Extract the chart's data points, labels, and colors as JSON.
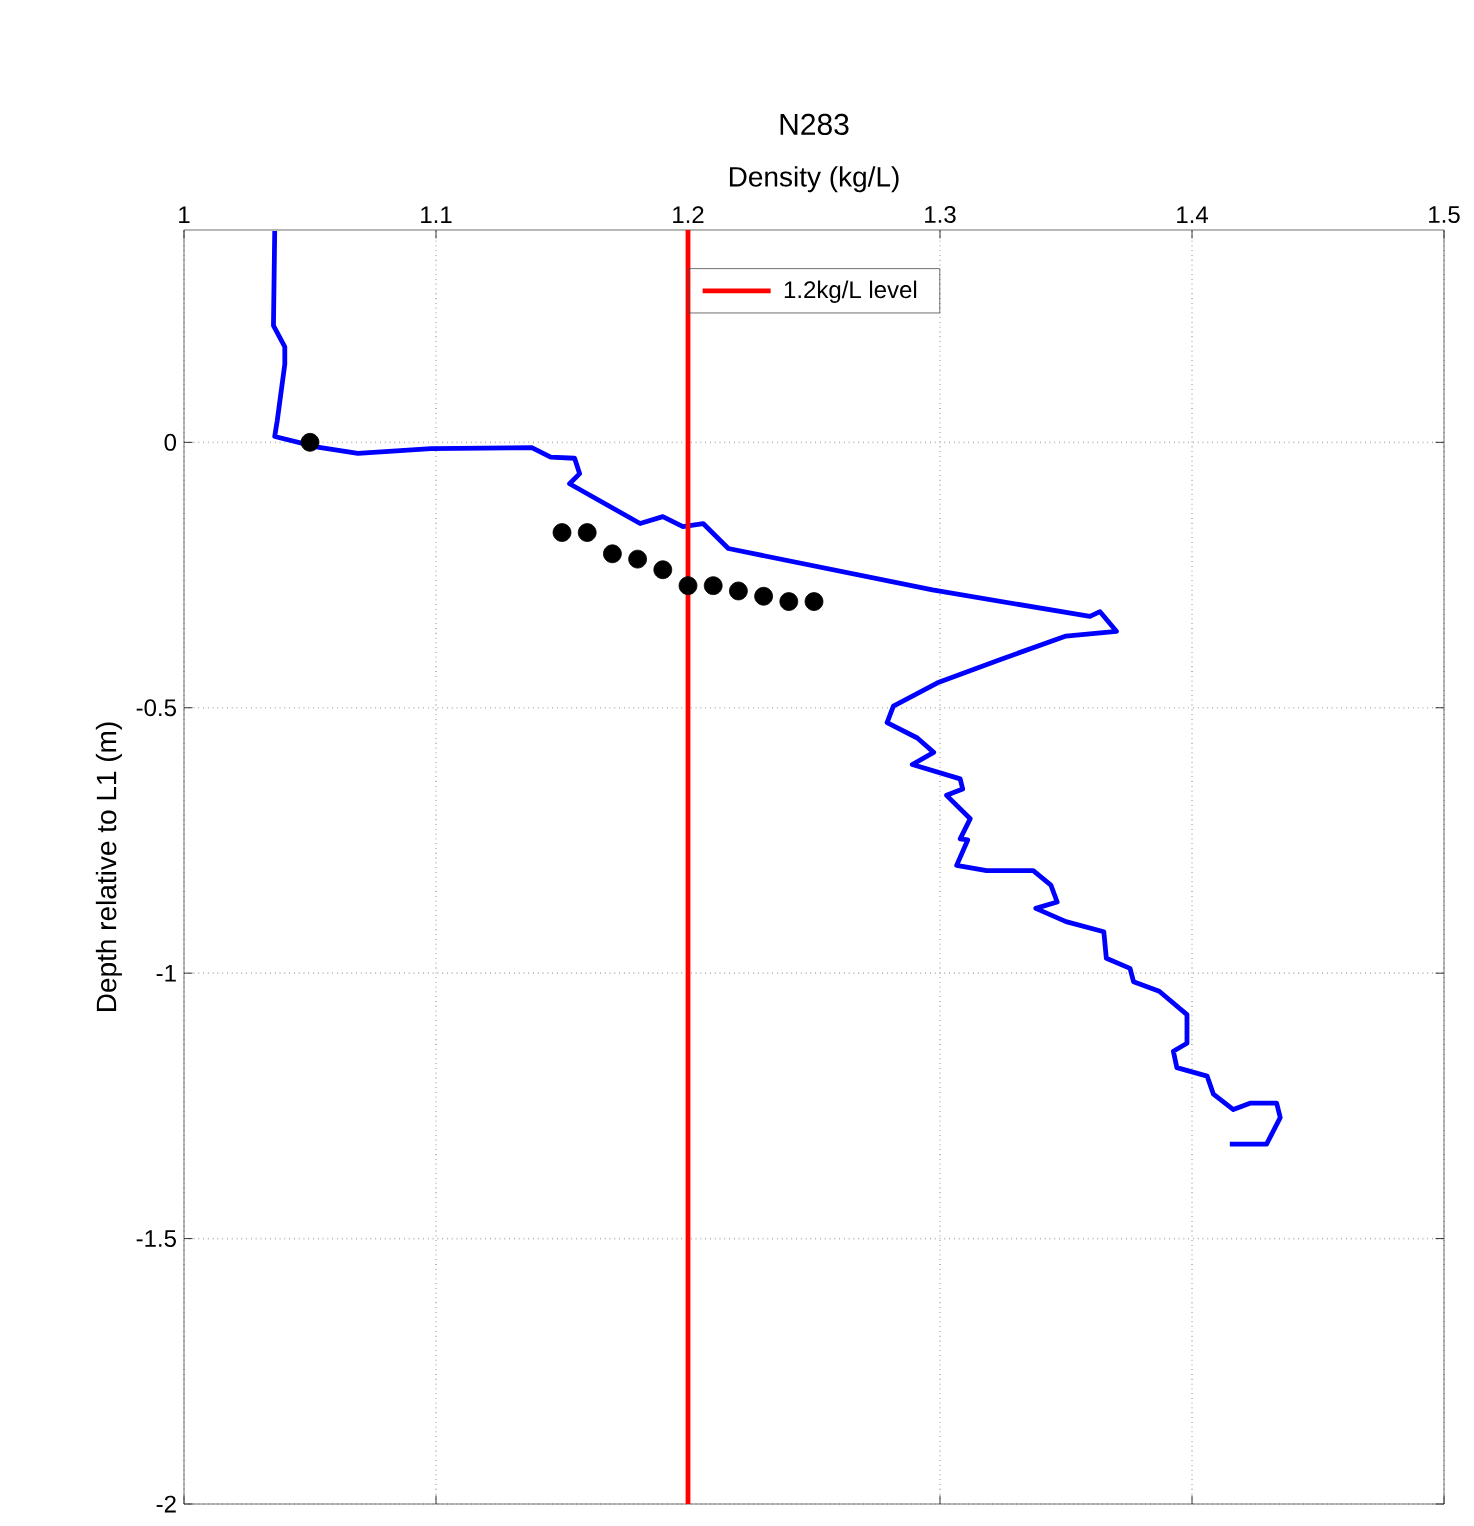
{
  "chart_data": {
    "type": "line",
    "title": "N283",
    "xlabel": "Density (kg/L)",
    "ylabel": "Depth relative to L1 (m)",
    "xlim": [
      1,
      1.5
    ],
    "xticks": [
      1,
      1.1,
      1.2,
      1.3,
      1.4,
      1.5
    ],
    "ylim": [
      -2,
      0.4
    ],
    "yticks": [
      -2,
      -1.5,
      -1,
      -0.5,
      0
    ],
    "grid": true,
    "legend": "top",
    "line_style": "solid",
    "series": [
      {
        "color": "#0000ff",
        "marker": "none",
        "x": [
          1.036,
          1.0355,
          1.04,
          1.04,
          1.037,
          1.036,
          1.053,
          1.069,
          1.098,
          1.138,
          1.1455,
          1.155,
          1.157,
          1.153,
          1.181,
          1.19,
          1.198,
          1.206,
          1.216,
          1.297,
          1.3595,
          1.3635,
          1.37,
          1.35,
          1.324,
          1.299,
          1.2815,
          1.279,
          1.291,
          1.2975,
          1.289,
          1.308,
          1.309,
          1.3026,
          1.312,
          1.308,
          1.311,
          1.3066,
          1.3185,
          1.337,
          1.344,
          1.3465,
          1.338,
          1.35,
          1.365,
          1.366,
          1.3754,
          1.3768,
          1.387,
          1.398,
          1.398,
          1.3926,
          1.394,
          1.406,
          1.4085,
          1.4164,
          1.423,
          1.4336,
          1.435,
          1.4296,
          1.415
        ],
        "values": [
          0.398,
          0.22,
          0.18,
          0.147,
          0.041,
          0.011,
          -0.009,
          -0.021,
          -0.012,
          -0.01,
          -0.028,
          -0.03,
          -0.059,
          -0.078,
          -0.153,
          -0.14,
          -0.159,
          -0.153,
          -0.2,
          -0.278,
          -0.328,
          -0.319,
          -0.356,
          -0.365,
          -0.409,
          -0.453,
          -0.497,
          -0.528,
          -0.557,
          -0.584,
          -0.607,
          -0.634,
          -0.653,
          -0.665,
          -0.709,
          -0.747,
          -0.749,
          -0.797,
          -0.807,
          -0.807,
          -0.834,
          -0.866,
          -0.878,
          -0.903,
          -0.922,
          -0.972,
          -0.991,
          -1.016,
          -1.034,
          -1.078,
          -1.132,
          -1.147,
          -1.178,
          -1.194,
          -1.228,
          -1.257,
          -1.245,
          -1.245,
          -1.272,
          -1.322,
          -1.322
        ]
      },
      {
        "type": "scatter",
        "color": "#000000",
        "marker": "circle",
        "x": [
          1.05,
          1.15,
          1.16,
          1.17,
          1.18,
          1.19,
          1.2,
          1.21,
          1.22,
          1.23,
          1.24,
          1.25
        ],
        "values": [
          0,
          -0.17,
          -0.17,
          -0.21,
          -0.22,
          -0.24,
          -0.27,
          -0.27,
          -0.28,
          -0.29,
          -0.3,
          -0.3
        ]
      }
    ],
    "ref_lines": [
      {
        "axis": "x",
        "value": 1.2,
        "label": "1.2kg/L level",
        "color": "#ff0000",
        "line_style": "solid"
      }
    ]
  }
}
